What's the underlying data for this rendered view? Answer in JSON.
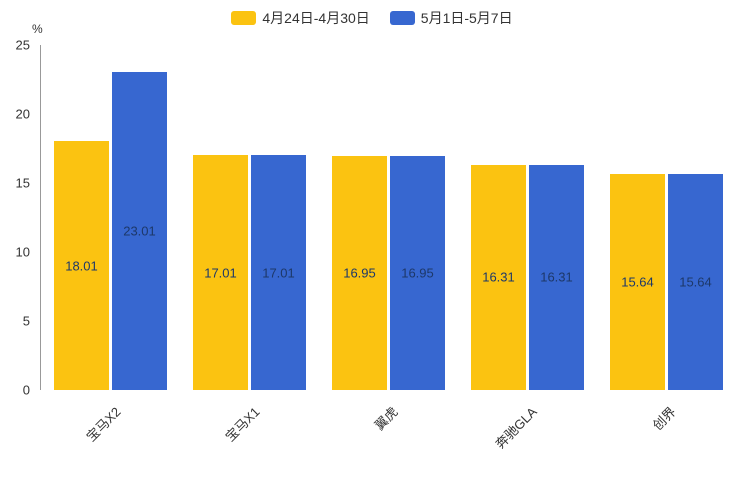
{
  "chart_data": {
    "type": "bar",
    "title": "",
    "xlabel": "",
    "ylabel": "%",
    "ylim": [
      0,
      25
    ],
    "yticks": [
      25,
      20,
      15,
      10,
      5,
      0
    ],
    "grid": false,
    "legend_position": "top",
    "categories": [
      "宝马X2",
      "宝马X1",
      "翼虎",
      "奔驰GLA",
      "创界"
    ],
    "series": [
      {
        "name": "4月24日-4月30日",
        "color": "#FBC311",
        "values": [
          18.01,
          17.01,
          16.95,
          16.31,
          15.64
        ]
      },
      {
        "name": "5月1日-5月7日",
        "color": "#3767D0",
        "values": [
          23.01,
          17.01,
          16.95,
          16.31,
          15.64
        ]
      }
    ],
    "bar_value_label_color": "#1d3869",
    "axis_line_color": "#999999"
  }
}
